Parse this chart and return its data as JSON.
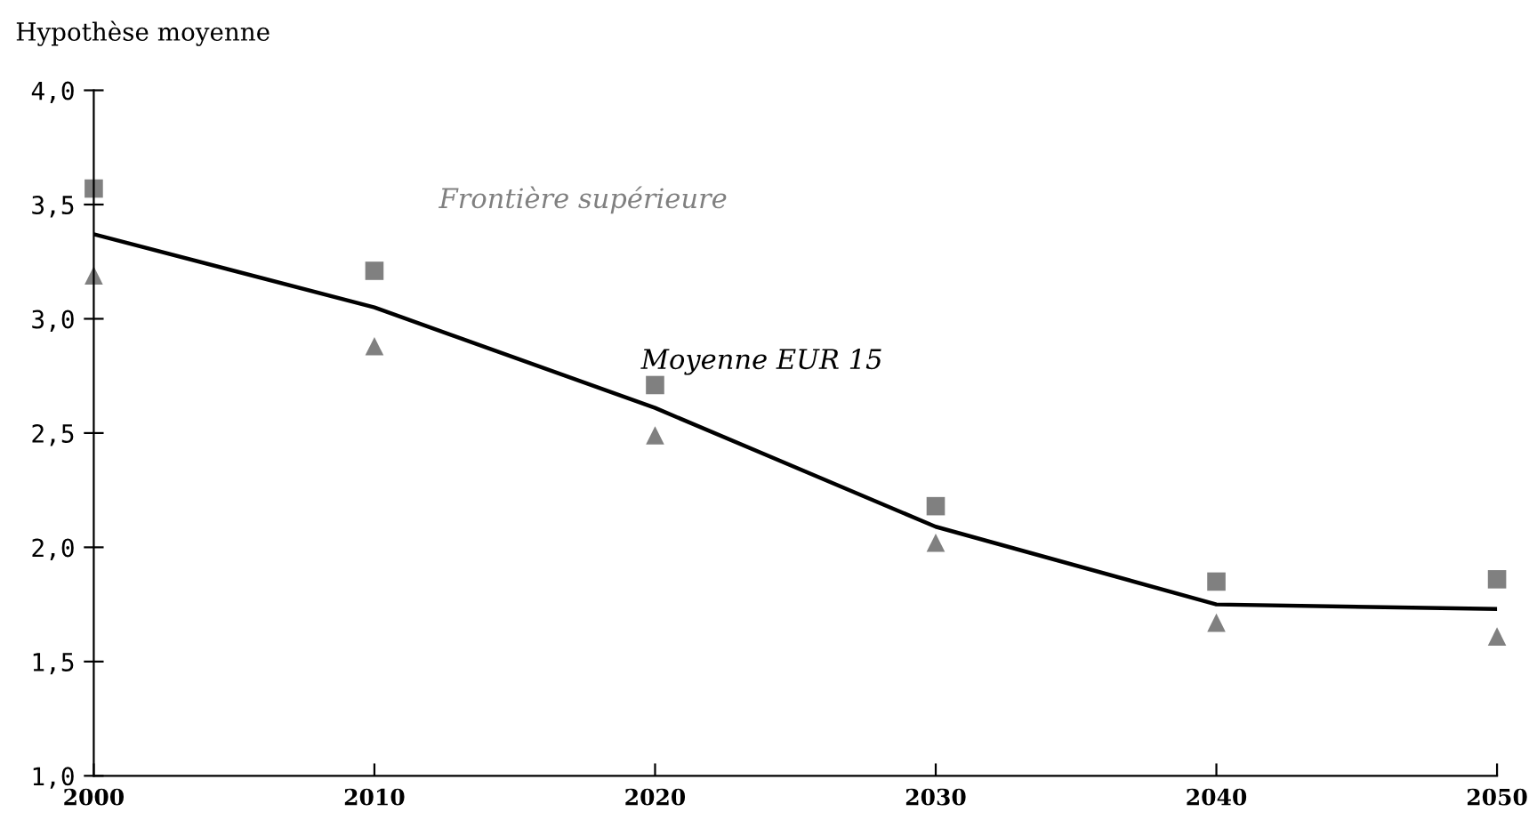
{
  "chart_data": {
    "type": "line",
    "ylabel": "Hypothèse moyenne",
    "x": [
      2000,
      2010,
      2020,
      2030,
      2040,
      2050
    ],
    "series": [
      {
        "name": "Frontière supérieure",
        "type": "scatter",
        "marker": "square",
        "color": "#808080",
        "values": [
          3.57,
          3.21,
          2.71,
          2.18,
          1.85,
          1.86
        ]
      },
      {
        "type": "scatter",
        "marker": "triangle",
        "color": "#808080",
        "values": [
          3.19,
          2.88,
          2.49,
          2.02,
          1.67,
          1.61
        ]
      },
      {
        "name": "Moyenne EUR 15",
        "marker": "none",
        "color": "#000000",
        "values": [
          3.37,
          3.05,
          2.61,
          2.09,
          1.75,
          1.73
        ]
      }
    ],
    "xlim": [
      2000,
      2050
    ],
    "xticks": [
      2000,
      2010,
      2020,
      2030,
      2040,
      2050
    ],
    "ylim": [
      1,
      4
    ],
    "yticks": [
      {
        "value": 1,
        "label": "1,0"
      },
      {
        "value": 1.5,
        "label": "1,5"
      },
      {
        "value": 2,
        "label": "2,0"
      },
      {
        "value": 2.5,
        "label": "2,5"
      },
      {
        "value": 3,
        "label": "3,0"
      },
      {
        "value": 3.5,
        "label": "3,5"
      },
      {
        "value": 4,
        "label": "4,0"
      }
    ],
    "grid": false,
    "legend": false
  }
}
